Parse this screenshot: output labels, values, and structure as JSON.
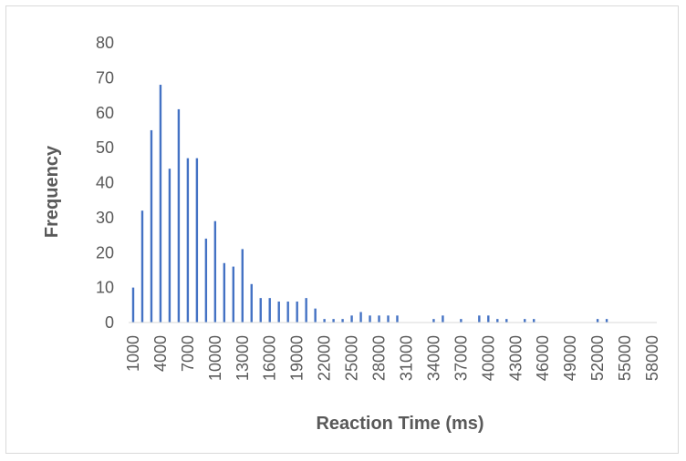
{
  "chart_data": {
    "type": "bar",
    "xlabel": "Reaction Time (ms)",
    "ylabel": "Frequency",
    "ylim": [
      0,
      80
    ],
    "y_ticks": [
      0,
      10,
      20,
      30,
      40,
      50,
      60,
      70,
      80
    ],
    "x_tick_labels": [
      "1000",
      "4000",
      "7000",
      "10000",
      "13000",
      "16000",
      "19000",
      "22000",
      "25000",
      "28000",
      "31000",
      "34000",
      "37000",
      "40000",
      "43000",
      "46000",
      "49000",
      "52000",
      "55000",
      "58000"
    ],
    "grid": false,
    "legend": "none",
    "bar_color": "#4472c4",
    "bin_width": 1000,
    "categories": [
      1000,
      2000,
      3000,
      4000,
      5000,
      6000,
      7000,
      8000,
      9000,
      10000,
      11000,
      12000,
      13000,
      14000,
      15000,
      16000,
      17000,
      18000,
      19000,
      20000,
      21000,
      22000,
      23000,
      24000,
      25000,
      26000,
      27000,
      28000,
      29000,
      30000,
      31000,
      32000,
      33000,
      34000,
      35000,
      36000,
      37000,
      38000,
      39000,
      40000,
      41000,
      42000,
      43000,
      44000,
      45000,
      46000,
      47000,
      48000,
      49000,
      50000,
      51000,
      52000,
      53000,
      54000,
      55000,
      56000,
      57000,
      58000
    ],
    "values": [
      10,
      32,
      55,
      68,
      44,
      61,
      47,
      47,
      24,
      29,
      17,
      16,
      21,
      11,
      7,
      7,
      6,
      6,
      6,
      7,
      4,
      1,
      1,
      1,
      2,
      3,
      2,
      2,
      2,
      2,
      0,
      0,
      0,
      1,
      2,
      0,
      1,
      0,
      2,
      2,
      1,
      1,
      0,
      1,
      1,
      0,
      0,
      0,
      0,
      0,
      0,
      1,
      1,
      0,
      0,
      0,
      0,
      0
    ]
  }
}
